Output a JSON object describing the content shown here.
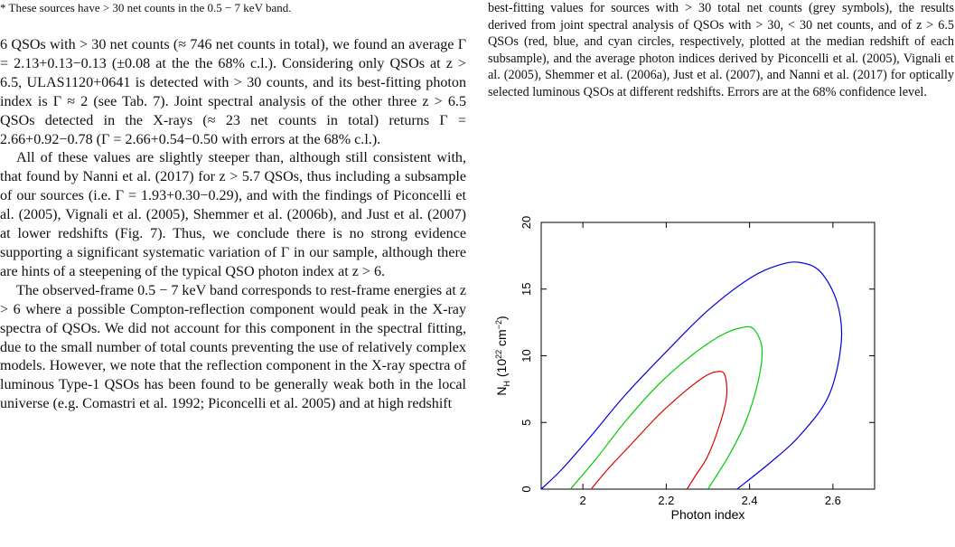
{
  "footnote": "* These sources have > 30 net counts in the 0.5 − 7 keV band.",
  "paragraphs": [
    "6 QSOs with > 30 net counts (≈ 746 net counts in total), we found an average Γ = 2.13+0.13−0.13 (±0.08 at the the 68% c.l.). Considering only QSOs at z > 6.5, ULAS1120+0641 is detected with > 30 counts, and its best-fitting photon index is Γ ≈ 2 (see Tab. 7). Joint spectral analysis of the other three z > 6.5 QSOs detected in the X-rays (≈ 23 net counts in total) returns Γ = 2.66+0.92−0.78 (Γ = 2.66+0.54−0.50 with errors at the 68% c.l.).",
    "All of these values are slightly steeper than, although still consistent with, that found by Nanni et al. (2017) for z > 5.7 QSOs, thus including a subsample of our sources (i.e. Γ = 1.93+0.30−0.29), and with the findings of Piconcelli et al. (2005), Vignali et al. (2005), Shemmer et al. (2006b), and Just et al. (2007) at lower redshifts (Fig. 7). Thus, we conclude there is no strong evidence supporting a significant systematic variation of Γ in our sample, although there are hints of a steepening of the typical QSO photon index at z > 6.",
    "The observed-frame 0.5 − 7 keV band corresponds to rest-frame energies at z > 6 where a possible Compton-reflection component would peak in the X-ray spectra of QSOs. We did not account for this component in the spectral fitting, due to the small number of total counts preventing the use of relatively complex models. However, we note that the reflection component in the X-ray spectra of luminous Type-1 QSOs has been found to be generally weak both in the local universe (e.g. Comastri et al. 1992; Piconcelli et al. 2005) and at high redshift"
  ],
  "caption": "best-fitting values for sources with > 30 total net counts (grey symbols), the results derived from joint spectral analysis of QSOs with > 30, < 30 net counts, and of z > 6.5 QSOs (red, blue, and cyan circles, respectively, plotted at the median redshift of each subsample), and the average photon indices derived by Piconcelli et al. (2005), Vignali et al. (2005), Shemmer et al. (2006a), Just et al. (2007), and Nanni et al. (2017) for optically selected luminous QSOs at different redshifts. Errors are at the 68% confidence level.",
  "chart_data": {
    "type": "line",
    "xlabel": "Photon index",
    "ylabel": "N_H (10^22 cm^-2)",
    "xlim": [
      1.9,
      2.7
    ],
    "ylim": [
      0,
      20
    ],
    "xticks": [
      "2",
      "2.2",
      "2.4",
      "2.6"
    ],
    "yticks": [
      "0",
      "5",
      "10",
      "15",
      "20"
    ],
    "series": [
      {
        "color": "#dd0000",
        "points": [
          [
            2.02,
            0
          ],
          [
            2.06,
            1.5
          ],
          [
            2.12,
            3.5
          ],
          [
            2.18,
            5.5
          ],
          [
            2.24,
            7.2
          ],
          [
            2.29,
            8.4
          ],
          [
            2.32,
            8.8
          ],
          [
            2.34,
            8.6
          ],
          [
            2.345,
            7.0
          ],
          [
            2.33,
            5.0
          ],
          [
            2.3,
            2.5
          ],
          [
            2.27,
            1.0
          ],
          [
            2.25,
            0
          ]
        ]
      },
      {
        "color": "#00cc00",
        "points": [
          [
            1.97,
            0
          ],
          [
            2.03,
            2.2
          ],
          [
            2.1,
            5.0
          ],
          [
            2.18,
            7.8
          ],
          [
            2.26,
            10.0
          ],
          [
            2.33,
            11.5
          ],
          [
            2.38,
            12.1
          ],
          [
            2.41,
            12.0
          ],
          [
            2.43,
            10.5
          ],
          [
            2.42,
            8.0
          ],
          [
            2.39,
            5.0
          ],
          [
            2.35,
            2.5
          ],
          [
            2.3,
            0
          ]
        ]
      },
      {
        "color": "#0000dd",
        "points": [
          [
            1.9,
            0
          ],
          [
            1.95,
            1.5
          ],
          [
            2.02,
            4.0
          ],
          [
            2.1,
            7.0
          ],
          [
            2.2,
            10.3
          ],
          [
            2.3,
            13.4
          ],
          [
            2.4,
            15.8
          ],
          [
            2.47,
            16.8
          ],
          [
            2.52,
            17.0
          ],
          [
            2.57,
            16.3
          ],
          [
            2.61,
            14.0
          ],
          [
            2.62,
            11.0
          ],
          [
            2.59,
            7.0
          ],
          [
            2.52,
            4.0
          ],
          [
            2.45,
            2.0
          ],
          [
            2.37,
            0
          ]
        ]
      }
    ]
  }
}
